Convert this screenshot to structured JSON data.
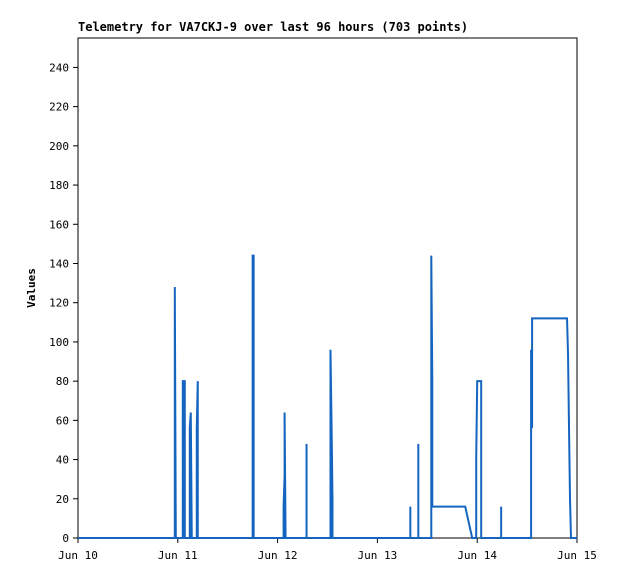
{
  "chart_data": {
    "type": "line",
    "title": "Telemetry for VA7CKJ-9 over last 96 hours (703 points)",
    "y_label": "Values",
    "xlim": [
      0,
      5
    ],
    "xticks": [
      {
        "value": 0,
        "label": "Jun 10"
      },
      {
        "value": 1,
        "label": "Jun 11"
      },
      {
        "value": 2,
        "label": "Jun 12"
      },
      {
        "value": 3,
        "label": "Jun 13"
      },
      {
        "value": 4,
        "label": "Jun 14"
      },
      {
        "value": 5,
        "label": "Jun 15"
      }
    ],
    "ylim": [
      0,
      255
    ],
    "yticks": [
      0,
      20,
      40,
      60,
      80,
      100,
      120,
      140,
      160,
      180,
      200,
      220,
      240
    ],
    "color": "#1565c0",
    "x": [
      0,
      0.97,
      0.97,
      0.98,
      1.05,
      1.05,
      1.07,
      1.07,
      1.12,
      1.12,
      1.13,
      1.14,
      1.19,
      1.19,
      1.2,
      1.2,
      1.75,
      1.75,
      1.76,
      1.76,
      2.06,
      2.06,
      2.07,
      2.07,
      2.08,
      2.29,
      2.29,
      2.29,
      2.53,
      2.53,
      2.54,
      2.55,
      2.55,
      3.33,
      3.33,
      3.33,
      3.41,
      3.41,
      3.41,
      3.54,
      3.54,
      3.55,
      3.55,
      3.88,
      3.95,
      3.99,
      3.99,
      4.0,
      4.04,
      4.04,
      4.24,
      4.24,
      4.24,
      4.54,
      4.54,
      4.55,
      4.55,
      4.9,
      4.91,
      4.92,
      4.93,
      4.94,
      5
    ],
    "values": [
      0,
      0,
      128,
      0,
      0,
      80,
      80,
      0,
      0,
      56,
      64,
      0,
      0,
      56,
      80,
      0,
      0,
      144,
      144,
      0,
      0,
      16,
      32,
      64,
      0,
      0,
      48,
      0,
      0,
      96,
      60,
      20,
      0,
      0,
      16,
      0,
      0,
      48,
      0,
      0,
      144,
      80,
      16,
      16,
      0,
      0,
      40,
      80,
      80,
      0,
      0,
      16,
      0,
      0,
      96,
      56,
      112,
      112,
      94,
      56,
      20,
      0,
      0
    ]
  }
}
